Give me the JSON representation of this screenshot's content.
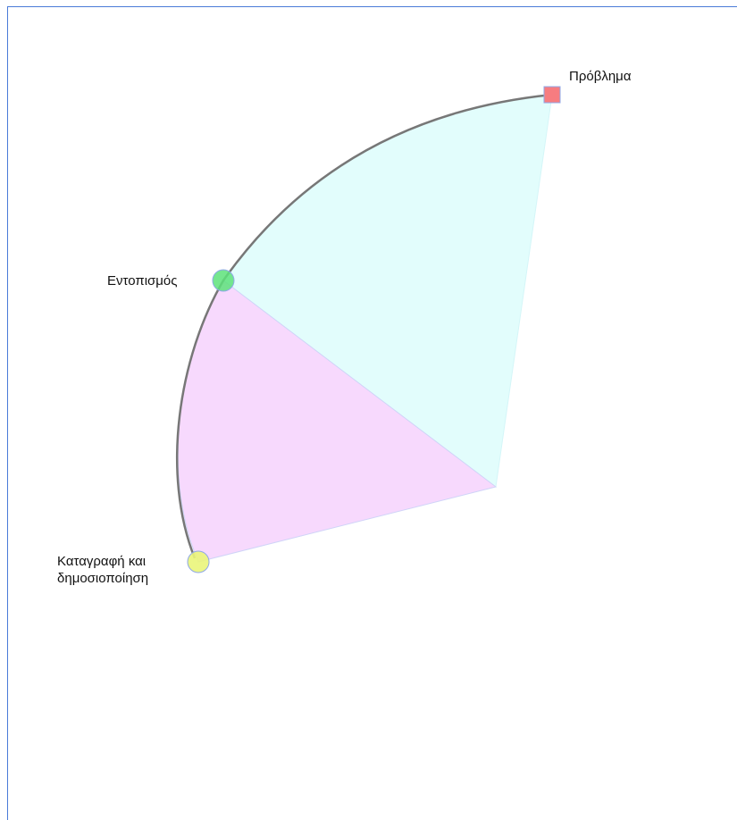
{
  "nodes": [
    {
      "label": "Πρόβλημα"
    },
    {
      "label": "Εντοπισμός"
    },
    {
      "label": "Καταγραφή και δημοσιοποίηση"
    }
  ]
}
